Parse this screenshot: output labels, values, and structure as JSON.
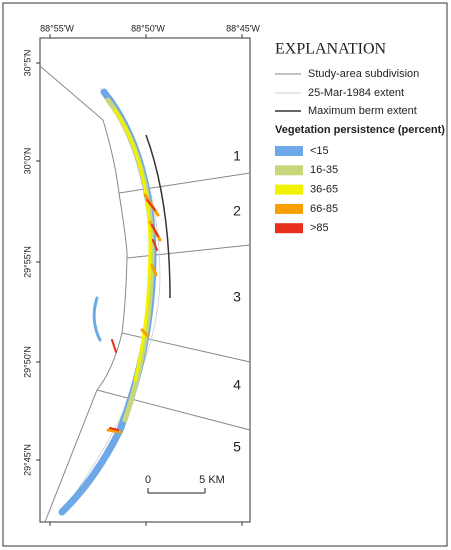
{
  "map": {
    "lon_labels": [
      "88°55'W",
      "88°50'W",
      "88°45'W"
    ],
    "lat_labels": [
      "30°5'N",
      "30°0'N",
      "29°55'N",
      "29°50'N",
      "29°45'N"
    ],
    "zones": [
      "1",
      "2",
      "3",
      "4",
      "5"
    ],
    "scale": {
      "start": "0",
      "end": "5 KM"
    }
  },
  "legend": {
    "title": "EXPLANATION",
    "lines": [
      "Study-area subdivision",
      "25-Mar-1984 extent",
      "Maximum berm extent"
    ],
    "classes_title": "Vegetation persistence (percent)",
    "classes": [
      {
        "label": "<15",
        "color": "#6fa8e8"
      },
      {
        "label": "16-35",
        "color": "#c8d77a"
      },
      {
        "label": "36-65",
        "color": "#f2f200"
      },
      {
        "label": "66-85",
        "color": "#f5a000"
      },
      {
        "label": ">85",
        "color": "#e8301c"
      }
    ]
  }
}
